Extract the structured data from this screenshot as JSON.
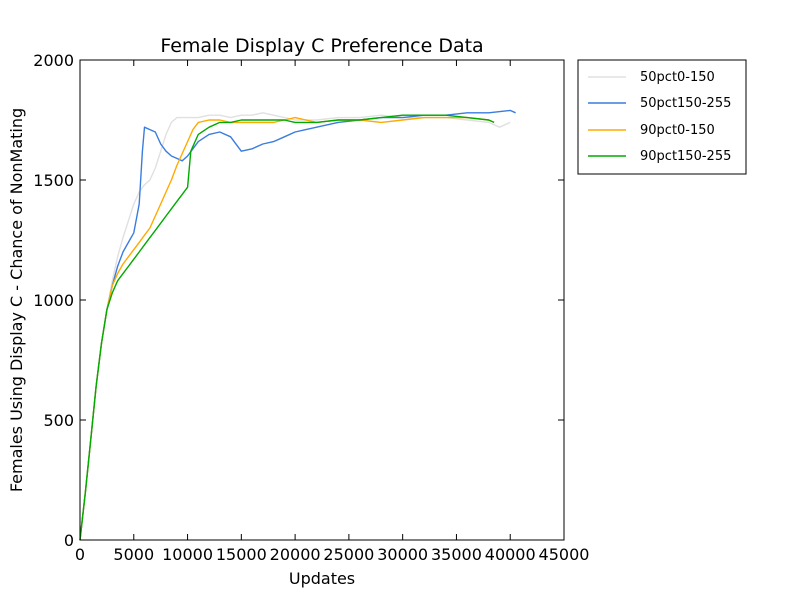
{
  "chart_data": {
    "type": "line",
    "title": "Female Display C Preference Data",
    "xlabel": "Updates",
    "ylabel": "Females Using Display C - Chance of NonMating",
    "xlim": [
      0,
      45000
    ],
    "ylim": [
      0,
      2000
    ],
    "xticks": [
      "0",
      "5000",
      "10000",
      "15000",
      "20000",
      "25000",
      "30000",
      "35000",
      "40000",
      "45000"
    ],
    "yticks": [
      "0",
      "500",
      "1000",
      "1500",
      "2000"
    ],
    "grid": false,
    "legend_position": "outside-right",
    "series": [
      {
        "name": "50pct0-150",
        "color": "#e0e0e0",
        "x": [
          0,
          500,
          1000,
          1500,
          2000,
          2500,
          3000,
          3500,
          4000,
          4500,
          5000,
          5500,
          6000,
          6500,
          7000,
          7500,
          8000,
          8500,
          9000,
          10000,
          11000,
          12000,
          13000,
          14000,
          15000,
          16000,
          17000,
          18000,
          19000,
          20000,
          22000,
          24000,
          26000,
          28000,
          30000,
          32000,
          34000,
          36000,
          38000,
          39000,
          40000
        ],
        "y": [
          0,
          200,
          420,
          640,
          820,
          960,
          1080,
          1180,
          1260,
          1330,
          1400,
          1450,
          1480,
          1500,
          1550,
          1620,
          1690,
          1740,
          1760,
          1760,
          1760,
          1770,
          1770,
          1760,
          1770,
          1770,
          1780,
          1770,
          1760,
          1750,
          1750,
          1760,
          1760,
          1770,
          1760,
          1760,
          1760,
          1750,
          1740,
          1720,
          1740
        ]
      },
      {
        "name": "50pct150-255",
        "color": "#3a7ddf",
        "x": [
          0,
          500,
          1000,
          1500,
          2000,
          2500,
          3000,
          3500,
          4000,
          4500,
          5000,
          5500,
          5800,
          6000,
          6500,
          7000,
          7500,
          8000,
          8500,
          9000,
          9500,
          10000,
          11000,
          12000,
          13000,
          14000,
          15000,
          16000,
          17000,
          18000,
          19000,
          20000,
          21000,
          22000,
          24000,
          26000,
          28000,
          30000,
          32000,
          34000,
          36000,
          38000,
          40000,
          40500
        ],
        "y": [
          0,
          200,
          420,
          640,
          820,
          960,
          1060,
          1140,
          1200,
          1240,
          1280,
          1400,
          1620,
          1720,
          1710,
          1700,
          1650,
          1620,
          1600,
          1590,
          1580,
          1600,
          1660,
          1690,
          1700,
          1680,
          1620,
          1630,
          1650,
          1660,
          1680,
          1700,
          1710,
          1720,
          1740,
          1750,
          1760,
          1760,
          1770,
          1770,
          1780,
          1780,
          1790,
          1780
        ]
      },
      {
        "name": "90pct0-150",
        "color": "#ffaa00",
        "x": [
          0,
          500,
          1000,
          1500,
          2000,
          2500,
          3000,
          3500,
          4000,
          4500,
          5000,
          5500,
          6000,
          6500,
          7000,
          7500,
          8000,
          8500,
          9000,
          9500,
          10000,
          10500,
          11000,
          12000,
          13000,
          14000,
          15000,
          16000,
          17000,
          18000,
          19000,
          20000,
          21000,
          22000,
          24000,
          26000,
          28000,
          30000,
          32000,
          34000,
          36000,
          38000,
          38500
        ],
        "y": [
          0,
          200,
          420,
          640,
          820,
          960,
          1060,
          1110,
          1150,
          1180,
          1210,
          1240,
          1270,
          1300,
          1350,
          1400,
          1450,
          1500,
          1560,
          1610,
          1660,
          1710,
          1740,
          1750,
          1750,
          1740,
          1740,
          1740,
          1740,
          1740,
          1750,
          1760,
          1750,
          1740,
          1750,
          1750,
          1740,
          1750,
          1760,
          1760,
          1760,
          1750,
          1740
        ]
      },
      {
        "name": "90pct150-255",
        "color": "#00aa00",
        "x": [
          0,
          500,
          1000,
          1500,
          2000,
          2500,
          3000,
          3500,
          4000,
          4500,
          5000,
          5500,
          6000,
          6500,
          7000,
          7500,
          8000,
          8500,
          9000,
          9500,
          10000,
          10300,
          11000,
          12000,
          13000,
          14000,
          15000,
          16000,
          17000,
          18000,
          19000,
          20000,
          21000,
          22000,
          24000,
          26000,
          28000,
          30000,
          32000,
          34000,
          36000,
          38000,
          38500
        ],
        "y": [
          0,
          200,
          420,
          640,
          820,
          960,
          1030,
          1080,
          1110,
          1140,
          1170,
          1200,
          1230,
          1260,
          1290,
          1320,
          1350,
          1380,
          1410,
          1440,
          1470,
          1620,
          1690,
          1720,
          1740,
          1740,
          1750,
          1750,
          1750,
          1750,
          1750,
          1740,
          1740,
          1740,
          1750,
          1750,
          1760,
          1770,
          1770,
          1770,
          1760,
          1750,
          1740
        ]
      }
    ]
  }
}
